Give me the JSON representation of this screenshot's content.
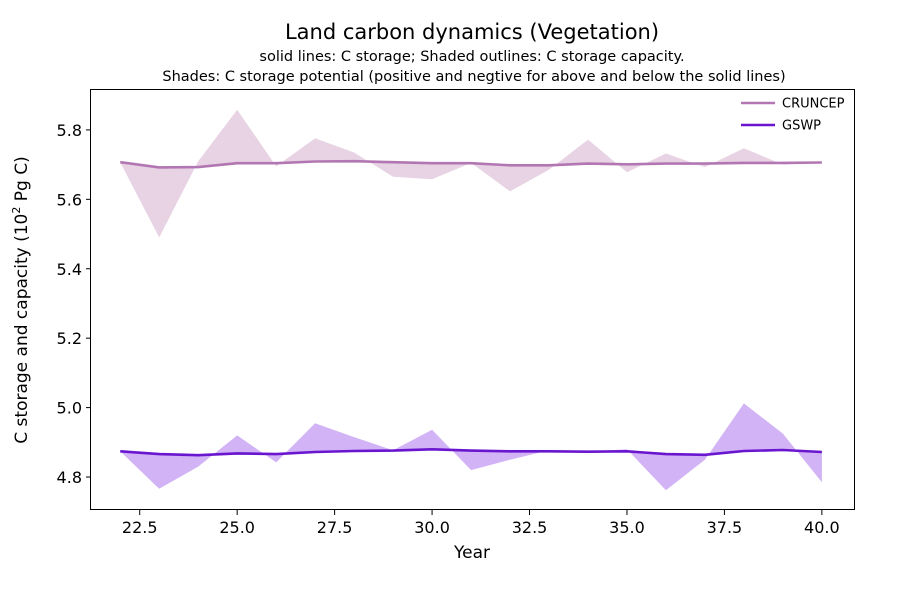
{
  "chart_data": {
    "type": "line",
    "title": "Land carbon dynamics (Vegetation)",
    "subtitle_line1": "solid lines: C storage; Shaded outlines: C storage capacity.",
    "subtitle_line2": "Shades: C storage potential (positive and negtive for above and below the solid lines)",
    "xlabel": "Year",
    "ylabel_prefix": "C storage and capacity (10",
    "ylabel_sup": "2",
    "ylabel_suffix": " Pg C)",
    "xlim": [
      21.25,
      40.85
    ],
    "ylim": [
      4.705,
      5.915
    ],
    "xticks": [
      22.5,
      25.0,
      27.5,
      30.0,
      32.5,
      35.0,
      37.5,
      40.0
    ],
    "xtick_labels": [
      "22.5",
      "25.0",
      "27.5",
      "30.0",
      "32.5",
      "35.0",
      "37.5",
      "40.0"
    ],
    "yticks": [
      4.8,
      5.0,
      5.2,
      5.4,
      5.6,
      5.8
    ],
    "ytick_labels": [
      "4.8",
      "5.0",
      "5.2",
      "5.4",
      "5.6",
      "5.8"
    ],
    "legend_position": "top-right",
    "x": [
      22,
      23,
      24,
      25,
      26,
      27,
      28,
      29,
      30,
      31,
      32,
      33,
      34,
      35,
      36,
      37,
      38,
      39,
      40
    ],
    "series": [
      {
        "name": "CRUNCEP",
        "color": "#b277b2",
        "fill_color": "#e8d3e4",
        "storage": [
          5.707,
          5.692,
          5.693,
          5.704,
          5.704,
          5.709,
          5.71,
          5.707,
          5.704,
          5.704,
          5.698,
          5.698,
          5.703,
          5.701,
          5.703,
          5.703,
          5.705,
          5.705,
          5.706
        ],
        "capacity": [
          5.707,
          5.49,
          5.71,
          5.858,
          5.695,
          5.776,
          5.735,
          5.665,
          5.658,
          5.705,
          5.623,
          5.685,
          5.772,
          5.678,
          5.732,
          5.693,
          5.747,
          5.7,
          5.706
        ]
      },
      {
        "name": "GSWP",
        "color": "#6a16cf",
        "fill_color": "#d2b3f5",
        "storage": [
          4.874,
          4.866,
          4.863,
          4.868,
          4.866,
          4.872,
          4.875,
          4.876,
          4.88,
          4.876,
          4.874,
          4.874,
          4.873,
          4.874,
          4.866,
          4.864,
          4.875,
          4.878,
          4.872
        ],
        "capacity": [
          4.874,
          4.766,
          4.83,
          4.92,
          4.842,
          4.955,
          4.915,
          4.877,
          4.936,
          4.82,
          4.85,
          4.877,
          4.873,
          4.88,
          4.762,
          4.85,
          5.012,
          4.925,
          4.785
        ]
      }
    ]
  }
}
